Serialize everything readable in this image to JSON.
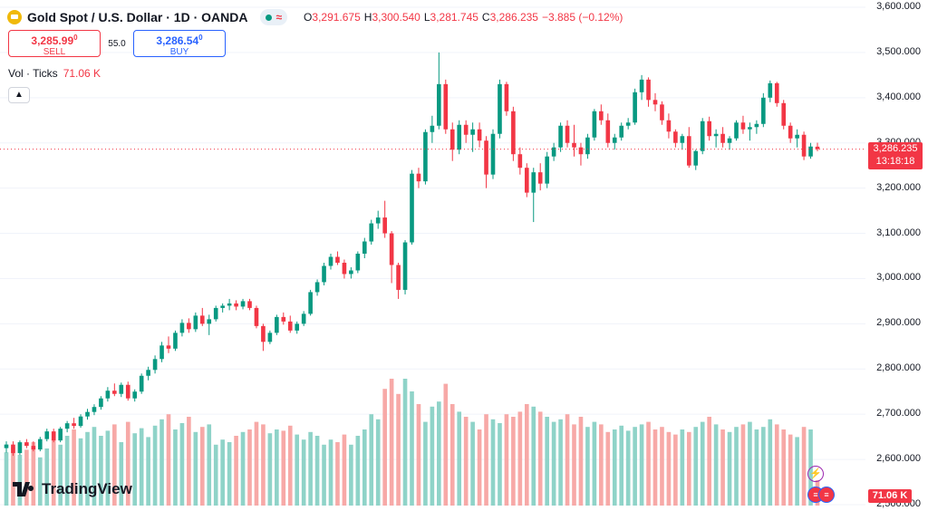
{
  "header": {
    "symbol_title": "Gold Spot / U.S. Dollar · 1D · OANDA",
    "ohlc": [
      {
        "key": "O",
        "value": "3,291.675"
      },
      {
        "key": "H",
        "value": "3,300.540"
      },
      {
        "key": "L",
        "value": "3,281.745"
      },
      {
        "key": "C",
        "value": "3,286.235"
      }
    ],
    "change": "−3.885 (−0.12%)"
  },
  "trade": {
    "sell_price": "3,285.99",
    "sell_sup": "0",
    "sell_label": "SELL",
    "spread": "55.0",
    "buy_price": "3,286.54",
    "buy_sup": "0",
    "buy_label": "BUY"
  },
  "volume_legend": {
    "label": "Vol · Ticks",
    "value": "71.06 K"
  },
  "brand": {
    "name": "TradingView"
  },
  "last_price": {
    "price": "3,286.235",
    "countdown": "13:18:18"
  },
  "volume_badge": "71.06 K",
  "colors": {
    "up": "#089981",
    "down": "#f23645",
    "up_volume": "#8fd3c8",
    "down_volume": "#f7a9a7",
    "sell": "#f23645",
    "buy": "#2962ff"
  },
  "chart_data": {
    "type": "candlestick",
    "title": "Gold Spot / U.S. Dollar · 1D · OANDA",
    "y_tick_labels": [
      "3,600.000",
      "3,500.000",
      "3,400.000",
      "3,300.000",
      "3,200.000",
      "3,100.000",
      "3,000.000",
      "2,900.000",
      "2,800.000",
      "2,700.000",
      "2,600.000",
      "2,500.000"
    ],
    "ylim": [
      2500,
      3600
    ],
    "y_axis_side": "right",
    "last_price_line": 3286.235,
    "candles": [
      {
        "o": 2625,
        "h": 2640,
        "l": 2615,
        "c": 2633,
        "v": 42
      },
      {
        "o": 2633,
        "h": 2640,
        "l": 2608,
        "c": 2614,
        "v": 46
      },
      {
        "o": 2614,
        "h": 2642,
        "l": 2610,
        "c": 2638,
        "v": 40
      },
      {
        "o": 2638,
        "h": 2645,
        "l": 2625,
        "c": 2630,
        "v": 44
      },
      {
        "o": 2630,
        "h": 2640,
        "l": 2618,
        "c": 2622,
        "v": 50
      },
      {
        "o": 2622,
        "h": 2650,
        "l": 2618,
        "c": 2645,
        "v": 38
      },
      {
        "o": 2645,
        "h": 2668,
        "l": 2640,
        "c": 2662,
        "v": 45
      },
      {
        "o": 2662,
        "h": 2668,
        "l": 2638,
        "c": 2642,
        "v": 52
      },
      {
        "o": 2642,
        "h": 2672,
        "l": 2638,
        "c": 2668,
        "v": 48
      },
      {
        "o": 2668,
        "h": 2685,
        "l": 2660,
        "c": 2680,
        "v": 55
      },
      {
        "o": 2680,
        "h": 2692,
        "l": 2668,
        "c": 2674,
        "v": 60
      },
      {
        "o": 2674,
        "h": 2700,
        "l": 2670,
        "c": 2695,
        "v": 53
      },
      {
        "o": 2695,
        "h": 2712,
        "l": 2688,
        "c": 2705,
        "v": 58
      },
      {
        "o": 2705,
        "h": 2722,
        "l": 2698,
        "c": 2716,
        "v": 62
      },
      {
        "o": 2716,
        "h": 2740,
        "l": 2710,
        "c": 2735,
        "v": 55
      },
      {
        "o": 2735,
        "h": 2760,
        "l": 2728,
        "c": 2752,
        "v": 59
      },
      {
        "o": 2752,
        "h": 2768,
        "l": 2740,
        "c": 2745,
        "v": 64
      },
      {
        "o": 2745,
        "h": 2770,
        "l": 2738,
        "c": 2765,
        "v": 50
      },
      {
        "o": 2765,
        "h": 2772,
        "l": 2730,
        "c": 2735,
        "v": 66
      },
      {
        "o": 2735,
        "h": 2755,
        "l": 2728,
        "c": 2750,
        "v": 57
      },
      {
        "o": 2750,
        "h": 2790,
        "l": 2745,
        "c": 2785,
        "v": 61
      },
      {
        "o": 2785,
        "h": 2805,
        "l": 2775,
        "c": 2798,
        "v": 54
      },
      {
        "o": 2798,
        "h": 2830,
        "l": 2790,
        "c": 2822,
        "v": 63
      },
      {
        "o": 2822,
        "h": 2860,
        "l": 2815,
        "c": 2852,
        "v": 68
      },
      {
        "o": 2852,
        "h": 2872,
        "l": 2835,
        "c": 2845,
        "v": 72
      },
      {
        "o": 2845,
        "h": 2885,
        "l": 2840,
        "c": 2880,
        "v": 60
      },
      {
        "o": 2880,
        "h": 2910,
        "l": 2872,
        "c": 2902,
        "v": 65
      },
      {
        "o": 2902,
        "h": 2912,
        "l": 2880,
        "c": 2888,
        "v": 70
      },
      {
        "o": 2888,
        "h": 2925,
        "l": 2882,
        "c": 2918,
        "v": 58
      },
      {
        "o": 2918,
        "h": 2935,
        "l": 2895,
        "c": 2900,
        "v": 62
      },
      {
        "o": 2900,
        "h": 2920,
        "l": 2875,
        "c": 2910,
        "v": 64
      },
      {
        "o": 2910,
        "h": 2940,
        "l": 2905,
        "c": 2935,
        "v": 48
      },
      {
        "o": 2935,
        "h": 2945,
        "l": 2925,
        "c": 2940,
        "v": 52
      },
      {
        "o": 2940,
        "h": 2955,
        "l": 2930,
        "c": 2945,
        "v": 50
      },
      {
        "o": 2945,
        "h": 2952,
        "l": 2930,
        "c": 2938,
        "v": 55
      },
      {
        "o": 2938,
        "h": 2955,
        "l": 2932,
        "c": 2950,
        "v": 58
      },
      {
        "o": 2950,
        "h": 2955,
        "l": 2930,
        "c": 2935,
        "v": 60
      },
      {
        "o": 2935,
        "h": 2940,
        "l": 2890,
        "c": 2895,
        "v": 66
      },
      {
        "o": 2895,
        "h": 2900,
        "l": 2840,
        "c": 2860,
        "v": 64
      },
      {
        "o": 2860,
        "h": 2885,
        "l": 2855,
        "c": 2880,
        "v": 57
      },
      {
        "o": 2880,
        "h": 2920,
        "l": 2875,
        "c": 2915,
        "v": 60
      },
      {
        "o": 2915,
        "h": 2925,
        "l": 2898,
        "c": 2905,
        "v": 59
      },
      {
        "o": 2905,
        "h": 2918,
        "l": 2880,
        "c": 2885,
        "v": 63
      },
      {
        "o": 2885,
        "h": 2905,
        "l": 2878,
        "c": 2900,
        "v": 56
      },
      {
        "o": 2900,
        "h": 2928,
        "l": 2895,
        "c": 2922,
        "v": 52
      },
      {
        "o": 2922,
        "h": 2975,
        "l": 2918,
        "c": 2970,
        "v": 58
      },
      {
        "o": 2970,
        "h": 2998,
        "l": 2962,
        "c": 2992,
        "v": 55
      },
      {
        "o": 2992,
        "h": 3035,
        "l": 2985,
        "c": 3028,
        "v": 48
      },
      {
        "o": 3028,
        "h": 3055,
        "l": 3020,
        "c": 3048,
        "v": 52
      },
      {
        "o": 3048,
        "h": 3060,
        "l": 3030,
        "c": 3035,
        "v": 50
      },
      {
        "o": 3035,
        "h": 3042,
        "l": 3000,
        "c": 3010,
        "v": 56
      },
      {
        "o": 3010,
        "h": 3025,
        "l": 3000,
        "c": 3018,
        "v": 48
      },
      {
        "o": 3018,
        "h": 3060,
        "l": 3012,
        "c": 3055,
        "v": 55
      },
      {
        "o": 3055,
        "h": 3090,
        "l": 3045,
        "c": 3082,
        "v": 60
      },
      {
        "o": 3082,
        "h": 3130,
        "l": 3075,
        "c": 3122,
        "v": 72
      },
      {
        "o": 3122,
        "h": 3150,
        "l": 3110,
        "c": 3135,
        "v": 68
      },
      {
        "o": 3135,
        "h": 3172,
        "l": 3090,
        "c": 3100,
        "v": 92
      },
      {
        "o": 3100,
        "h": 3105,
        "l": 2990,
        "c": 3030,
        "v": 100
      },
      {
        "o": 3030,
        "h": 3035,
        "l": 2955,
        "c": 2975,
        "v": 88
      },
      {
        "o": 2975,
        "h": 3085,
        "l": 2965,
        "c": 3080,
        "v": 100
      },
      {
        "o": 3080,
        "h": 3240,
        "l": 3075,
        "c": 3232,
        "v": 90
      },
      {
        "o": 3232,
        "h": 3245,
        "l": 3200,
        "c": 3215,
        "v": 80
      },
      {
        "o": 3215,
        "h": 3330,
        "l": 3208,
        "c": 3324,
        "v": 66
      },
      {
        "o": 3324,
        "h": 3360,
        "l": 3300,
        "c": 3338,
        "v": 78
      },
      {
        "o": 3338,
        "h": 3500,
        "l": 3330,
        "c": 3430,
        "v": 82
      },
      {
        "o": 3430,
        "h": 3440,
        "l": 3320,
        "c": 3330,
        "v": 96
      },
      {
        "o": 3330,
        "h": 3345,
        "l": 3260,
        "c": 3285,
        "v": 80
      },
      {
        "o": 3285,
        "h": 3350,
        "l": 3275,
        "c": 3340,
        "v": 74
      },
      {
        "o": 3340,
        "h": 3350,
        "l": 3300,
        "c": 3318,
        "v": 70
      },
      {
        "o": 3318,
        "h": 3345,
        "l": 3280,
        "c": 3330,
        "v": 66
      },
      {
        "o": 3330,
        "h": 3345,
        "l": 3290,
        "c": 3305,
        "v": 60
      },
      {
        "o": 3305,
        "h": 3315,
        "l": 3200,
        "c": 3230,
        "v": 72
      },
      {
        "o": 3230,
        "h": 3330,
        "l": 3220,
        "c": 3320,
        "v": 68
      },
      {
        "o": 3320,
        "h": 3440,
        "l": 3310,
        "c": 3430,
        "v": 65
      },
      {
        "o": 3430,
        "h": 3435,
        "l": 3360,
        "c": 3370,
        "v": 72
      },
      {
        "o": 3370,
        "h": 3380,
        "l": 3260,
        "c": 3275,
        "v": 70
      },
      {
        "o": 3275,
        "h": 3290,
        "l": 3230,
        "c": 3245,
        "v": 74
      },
      {
        "o": 3245,
        "h": 3255,
        "l": 3180,
        "c": 3190,
        "v": 80
      },
      {
        "o": 3190,
        "h": 3245,
        "l": 3125,
        "c": 3235,
        "v": 78
      },
      {
        "o": 3235,
        "h": 3255,
        "l": 3195,
        "c": 3210,
        "v": 74
      },
      {
        "o": 3210,
        "h": 3280,
        "l": 3200,
        "c": 3270,
        "v": 70
      },
      {
        "o": 3270,
        "h": 3300,
        "l": 3260,
        "c": 3290,
        "v": 66
      },
      {
        "o": 3290,
        "h": 3345,
        "l": 3280,
        "c": 3338,
        "v": 68
      },
      {
        "o": 3338,
        "h": 3350,
        "l": 3290,
        "c": 3300,
        "v": 72
      },
      {
        "o": 3300,
        "h": 3340,
        "l": 3270,
        "c": 3290,
        "v": 64
      },
      {
        "o": 3290,
        "h": 3300,
        "l": 3250,
        "c": 3275,
        "v": 70
      },
      {
        "o": 3275,
        "h": 3320,
        "l": 3265,
        "c": 3312,
        "v": 62
      },
      {
        "o": 3312,
        "h": 3375,
        "l": 3305,
        "c": 3370,
        "v": 66
      },
      {
        "o": 3370,
        "h": 3385,
        "l": 3340,
        "c": 3350,
        "v": 64
      },
      {
        "o": 3350,
        "h": 3365,
        "l": 3290,
        "c": 3300,
        "v": 58
      },
      {
        "o": 3300,
        "h": 3320,
        "l": 3285,
        "c": 3312,
        "v": 60
      },
      {
        "o": 3312,
        "h": 3345,
        "l": 3305,
        "c": 3338,
        "v": 63
      },
      {
        "o": 3338,
        "h": 3355,
        "l": 3330,
        "c": 3345,
        "v": 59
      },
      {
        "o": 3345,
        "h": 3420,
        "l": 3340,
        "c": 3412,
        "v": 62
      },
      {
        "o": 3412,
        "h": 3450,
        "l": 3395,
        "c": 3440,
        "v": 64
      },
      {
        "o": 3440,
        "h": 3445,
        "l": 3380,
        "c": 3395,
        "v": 66
      },
      {
        "o": 3395,
        "h": 3410,
        "l": 3370,
        "c": 3385,
        "v": 60
      },
      {
        "o": 3385,
        "h": 3392,
        "l": 3340,
        "c": 3350,
        "v": 62
      },
      {
        "o": 3350,
        "h": 3365,
        "l": 3310,
        "c": 3325,
        "v": 58
      },
      {
        "o": 3325,
        "h": 3330,
        "l": 3290,
        "c": 3300,
        "v": 56
      },
      {
        "o": 3300,
        "h": 3320,
        "l": 3285,
        "c": 3315,
        "v": 60
      },
      {
        "o": 3315,
        "h": 3335,
        "l": 3245,
        "c": 3250,
        "v": 58
      },
      {
        "o": 3250,
        "h": 3285,
        "l": 3240,
        "c": 3282,
        "v": 62
      },
      {
        "o": 3282,
        "h": 3355,
        "l": 3275,
        "c": 3348,
        "v": 66
      },
      {
        "o": 3348,
        "h": 3358,
        "l": 3305,
        "c": 3315,
        "v": 70
      },
      {
        "o": 3315,
        "h": 3330,
        "l": 3290,
        "c": 3320,
        "v": 64
      },
      {
        "o": 3320,
        "h": 3335,
        "l": 3290,
        "c": 3300,
        "v": 60
      },
      {
        "o": 3300,
        "h": 3315,
        "l": 3285,
        "c": 3310,
        "v": 58
      },
      {
        "o": 3310,
        "h": 3350,
        "l": 3305,
        "c": 3345,
        "v": 62
      },
      {
        "o": 3345,
        "h": 3360,
        "l": 3320,
        "c": 3330,
        "v": 64
      },
      {
        "o": 3330,
        "h": 3345,
        "l": 3305,
        "c": 3335,
        "v": 66
      },
      {
        "o": 3335,
        "h": 3350,
        "l": 3320,
        "c": 3342,
        "v": 60
      },
      {
        "o": 3342,
        "h": 3410,
        "l": 3335,
        "c": 3400,
        "v": 62
      },
      {
        "o": 3400,
        "h": 3438,
        "l": 3390,
        "c": 3432,
        "v": 68
      },
      {
        "o": 3432,
        "h": 3435,
        "l": 3380,
        "c": 3388,
        "v": 64
      },
      {
        "o": 3388,
        "h": 3395,
        "l": 3330,
        "c": 3338,
        "v": 60
      },
      {
        "o": 3338,
        "h": 3345,
        "l": 3300,
        "c": 3310,
        "v": 56
      },
      {
        "o": 3310,
        "h": 3330,
        "l": 3290,
        "c": 3318,
        "v": 54
      },
      {
        "o": 3318,
        "h": 3325,
        "l": 3262,
        "c": 3270,
        "v": 62
      },
      {
        "o": 3270,
        "h": 3300,
        "l": 3265,
        "c": 3292,
        "v": 60
      },
      {
        "o": 3291.675,
        "h": 3300.54,
        "l": 3281.745,
        "c": 3286.235,
        "v": 20
      }
    ]
  }
}
